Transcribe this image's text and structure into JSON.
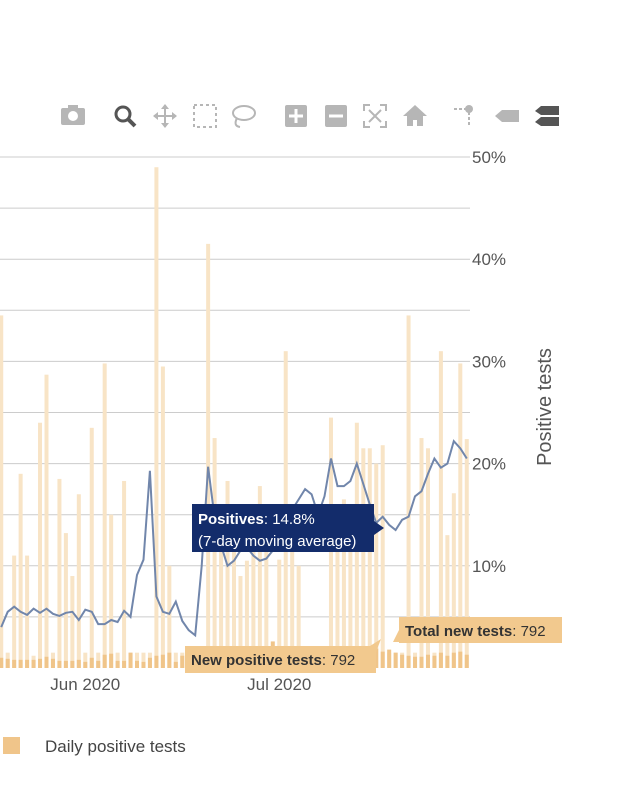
{
  "modebar": [
    {
      "name": "camera-icon",
      "active": false
    },
    {
      "name": "zoom-icon",
      "active": true
    },
    {
      "name": "pan-icon",
      "active": false
    },
    {
      "name": "box-select-icon",
      "active": false
    },
    {
      "name": "lasso-select-icon",
      "active": false
    },
    {
      "name": "zoom-in-icon",
      "active": false
    },
    {
      "name": "zoom-out-icon",
      "active": false
    },
    {
      "name": "autoscale-icon",
      "active": false
    },
    {
      "name": "reset-axes-icon",
      "active": false
    },
    {
      "name": "spike-lines-icon",
      "active": false
    },
    {
      "name": "hover-closest-icon",
      "active": false
    },
    {
      "name": "hover-compare-icon",
      "active": true
    }
  ],
  "colors": {
    "bar_total": "#f8e4c6",
    "bar_positive": "#f0c58a",
    "line": "#7186ab",
    "grid": "#cccccc",
    "tooltip_dark": "#132c6b",
    "tooltip_light": "#f2c98e",
    "modebar_icon": "#b6b6b6",
    "modebar_active": "#555555"
  },
  "legend": {
    "label": "Daily positive tests"
  },
  "tooltips": {
    "line": {
      "key": "Positives",
      "value": ": 14.8%",
      "note": "(7-day moving average)"
    },
    "total": {
      "key": "Total new tests",
      "value": ": 792"
    },
    "positive": {
      "key": "New positive tests",
      "value": ": 792"
    }
  },
  "chart_data": {
    "type": "bar",
    "x_start": "2020-05-19",
    "x_end": "2020-07-30",
    "x_ticks": [
      "Jun 2020",
      "Jul 2020"
    ],
    "x_tick_dates": [
      "2020-06-01",
      "2020-07-01"
    ],
    "ylabel": "Positive tests",
    "ylim": [
      0,
      0.5
    ],
    "y_ticks": [
      "10%",
      "20%",
      "30%",
      "40%",
      "50%"
    ],
    "y_tick_values": [
      0.1,
      0.2,
      0.3,
      0.4,
      0.5
    ],
    "grid": true,
    "legend_position": "bottom-left",
    "series": [
      {
        "name": "Total new tests",
        "kind": "bar",
        "dates": [
          "2020-05-19",
          "2020-05-20",
          "2020-05-21",
          "2020-05-22",
          "2020-05-23",
          "2020-05-24",
          "2020-05-25",
          "2020-05-26",
          "2020-05-27",
          "2020-05-28",
          "2020-05-29",
          "2020-05-30",
          "2020-05-31",
          "2020-06-01",
          "2020-06-02",
          "2020-06-03",
          "2020-06-04",
          "2020-06-05",
          "2020-06-06",
          "2020-06-07",
          "2020-06-08",
          "2020-06-09",
          "2020-06-10",
          "2020-06-11",
          "2020-06-12",
          "2020-06-13",
          "2020-06-14",
          "2020-06-15",
          "2020-06-16",
          "2020-06-17",
          "2020-06-18",
          "2020-06-19",
          "2020-06-20",
          "2020-06-21",
          "2020-06-22",
          "2020-06-23",
          "2020-06-24",
          "2020-06-25",
          "2020-06-26",
          "2020-06-27",
          "2020-06-28",
          "2020-06-29",
          "2020-06-30",
          "2020-07-01",
          "2020-07-02",
          "2020-07-03",
          "2020-07-04",
          "2020-07-05",
          "2020-07-06",
          "2020-07-07",
          "2020-07-08",
          "2020-07-09",
          "2020-07-10",
          "2020-07-11",
          "2020-07-12",
          "2020-07-13",
          "2020-07-14",
          "2020-07-15",
          "2020-07-16",
          "2020-07-17",
          "2020-07-18",
          "2020-07-19",
          "2020-07-20",
          "2020-07-21",
          "2020-07-22",
          "2020-07-23",
          "2020-07-24",
          "2020-07-25",
          "2020-07-26",
          "2020-07-27",
          "2020-07-28",
          "2020-07-29",
          "2020-07-30"
        ],
        "values": [
          0.345,
          0.015,
          0.11,
          0.19,
          0.11,
          0.012,
          0.24,
          0.287,
          0.015,
          0.185,
          0.132,
          0.09,
          0.17,
          0.015,
          0.235,
          0.015,
          0.298,
          0.15,
          0.015,
          0.183,
          0.015,
          0.015,
          0.015,
          0.015,
          0.49,
          0.295,
          0.1,
          0.015,
          0.015,
          0.015,
          0.015,
          0.015,
          0.415,
          0.225,
          0.158,
          0.183,
          0.135,
          0.09,
          0.105,
          0.138,
          0.178,
          0.133,
          0.015,
          0.106,
          0.31,
          0.145,
          0.1,
          0.015,
          0.015,
          0.015,
          0.015,
          0.245,
          0.14,
          0.165,
          0.15,
          0.24,
          0.215,
          0.215,
          0.2,
          0.218,
          0.015,
          0.015,
          0.015,
          0.345,
          0.015,
          0.225,
          0.215,
          0.015,
          0.31,
          0.13,
          0.171,
          0.298,
          0.224
        ]
      },
      {
        "name": "Daily positive tests",
        "kind": "bar",
        "dates": [
          "2020-05-19",
          "2020-05-20",
          "2020-05-21",
          "2020-05-22",
          "2020-05-23",
          "2020-05-24",
          "2020-05-25",
          "2020-05-26",
          "2020-05-27",
          "2020-05-28",
          "2020-05-29",
          "2020-05-30",
          "2020-05-31",
          "2020-06-01",
          "2020-06-02",
          "2020-06-03",
          "2020-06-04",
          "2020-06-05",
          "2020-06-06",
          "2020-06-07",
          "2020-06-08",
          "2020-06-09",
          "2020-06-10",
          "2020-06-11",
          "2020-06-12",
          "2020-06-13",
          "2020-06-14",
          "2020-06-15",
          "2020-06-16",
          "2020-06-17",
          "2020-06-18",
          "2020-06-19",
          "2020-06-20",
          "2020-06-21",
          "2020-06-22",
          "2020-06-23",
          "2020-06-24",
          "2020-06-25",
          "2020-06-26",
          "2020-06-27",
          "2020-06-28",
          "2020-06-29",
          "2020-06-30",
          "2020-07-01",
          "2020-07-02",
          "2020-07-03",
          "2020-07-04",
          "2020-07-05",
          "2020-07-06",
          "2020-07-07",
          "2020-07-08",
          "2020-07-09",
          "2020-07-10",
          "2020-07-11",
          "2020-07-12",
          "2020-07-13",
          "2020-07-14",
          "2020-07-15",
          "2020-07-16",
          "2020-07-17",
          "2020-07-18",
          "2020-07-19",
          "2020-07-20",
          "2020-07-21",
          "2020-07-22",
          "2020-07-23",
          "2020-07-24",
          "2020-07-25",
          "2020-07-26",
          "2020-07-27",
          "2020-07-28",
          "2020-07-29",
          "2020-07-30"
        ],
        "values": [
          0.01,
          0.009,
          0.008,
          0.008,
          0.008,
          0.008,
          0.009,
          0.011,
          0.009,
          0.007,
          0.007,
          0.007,
          0.008,
          0.006,
          0.01,
          0.007,
          0.013,
          0.014,
          0.007,
          0.007,
          0.015,
          0.007,
          0.006,
          0.01,
          0.012,
          0.013,
          0.015,
          0.006,
          0.012,
          0.007,
          0.007,
          0.007,
          0.015,
          0.011,
          0.016,
          0.012,
          0.008,
          0.01,
          0.011,
          0.011,
          0.012,
          0.01,
          0.026,
          0.012,
          0.015,
          0.009,
          0.007,
          0.007,
          0.016,
          0.008,
          0.011,
          0.007,
          0.013,
          0.011,
          0.011,
          0.013,
          0.013,
          0.015,
          0.019,
          0.016,
          0.018,
          0.015,
          0.013,
          0.012,
          0.011,
          0.011,
          0.013,
          0.012,
          0.015,
          0.012,
          0.015,
          0.016,
          0.013
        ]
      },
      {
        "name": "Positives",
        "kind": "line",
        "dates": [
          "2020-05-19",
          "2020-05-20",
          "2020-05-21",
          "2020-05-22",
          "2020-05-23",
          "2020-05-24",
          "2020-05-25",
          "2020-05-26",
          "2020-05-27",
          "2020-05-28",
          "2020-05-29",
          "2020-05-30",
          "2020-05-31",
          "2020-06-01",
          "2020-06-02",
          "2020-06-03",
          "2020-06-04",
          "2020-06-05",
          "2020-06-06",
          "2020-06-07",
          "2020-06-08",
          "2020-06-09",
          "2020-06-10",
          "2020-06-11",
          "2020-06-12",
          "2020-06-13",
          "2020-06-14",
          "2020-06-15",
          "2020-06-16",
          "2020-06-17",
          "2020-06-18",
          "2020-06-19",
          "2020-06-20",
          "2020-06-21",
          "2020-06-22",
          "2020-06-23",
          "2020-06-24",
          "2020-06-25",
          "2020-06-26",
          "2020-06-27",
          "2020-06-28",
          "2020-06-29",
          "2020-06-30",
          "2020-07-01",
          "2020-07-02",
          "2020-07-03",
          "2020-07-04",
          "2020-07-05",
          "2020-07-06",
          "2020-07-07",
          "2020-07-08",
          "2020-07-09",
          "2020-07-10",
          "2020-07-11",
          "2020-07-12",
          "2020-07-13",
          "2020-07-14",
          "2020-07-15",
          "2020-07-16",
          "2020-07-17",
          "2020-07-18",
          "2020-07-19",
          "2020-07-20",
          "2020-07-21",
          "2020-07-22",
          "2020-07-23",
          "2020-07-24",
          "2020-07-25",
          "2020-07-26",
          "2020-07-27",
          "2020-07-28",
          "2020-07-29",
          "2020-07-30"
        ],
        "values": [
          0.04,
          0.055,
          0.06,
          0.055,
          0.052,
          0.058,
          0.054,
          0.058,
          0.053,
          0.051,
          0.054,
          0.055,
          0.047,
          0.057,
          0.055,
          0.043,
          0.043,
          0.047,
          0.045,
          0.056,
          0.05,
          0.091,
          0.106,
          0.193,
          0.07,
          0.055,
          0.053,
          0.065,
          0.046,
          0.037,
          0.032,
          0.1,
          0.197,
          0.147,
          0.12,
          0.1,
          0.105,
          0.115,
          0.118,
          0.11,
          0.105,
          0.107,
          0.115,
          0.125,
          0.14,
          0.155,
          0.165,
          0.175,
          0.17,
          0.15,
          0.168,
          0.205,
          0.178,
          0.178,
          0.183,
          0.2,
          0.18,
          0.16,
          0.142,
          0.148,
          0.14,
          0.135,
          0.145,
          0.148,
          0.168,
          0.173,
          0.19,
          0.205,
          0.196,
          0.2,
          0.222,
          0.215,
          0.205
        ]
      }
    ]
  }
}
